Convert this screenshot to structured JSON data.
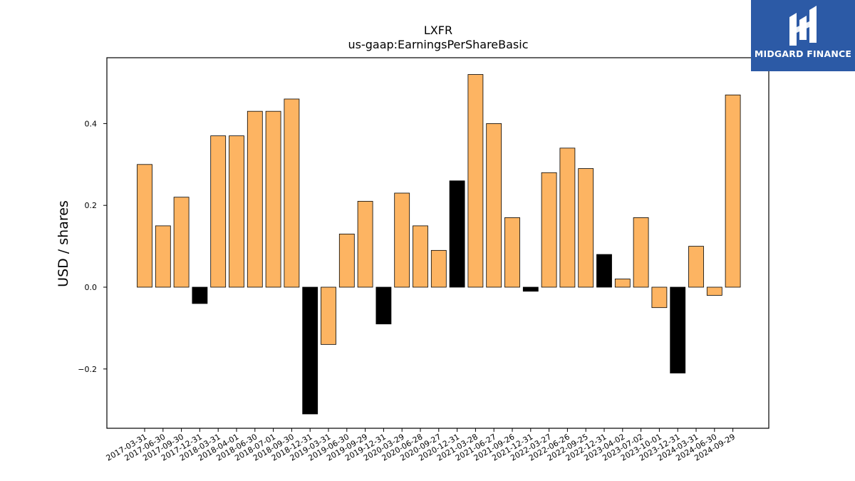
{
  "brand": {
    "name": "MIDGARD FINANCE",
    "background": "#2c5aa6"
  },
  "chart_data": {
    "type": "bar",
    "title": "LXFR",
    "subtitle": "us-gaap:EarningsPerShareBasic",
    "xlabel": "",
    "ylabel": "USD / shares",
    "ylim": [
      -0.35,
      0.56
    ],
    "yticks": [
      -0.2,
      0.0,
      0.2,
      0.4
    ],
    "ytick_labels": [
      "−0.2",
      "0.0",
      "0.2",
      "0.4"
    ],
    "grid": false,
    "colors": {
      "default": "#fdb462",
      "highlight": "#000000",
      "edge": "#000000"
    },
    "categories": [
      "2017-03-31",
      "2017-06-30",
      "2017-09-30",
      "2017-12-31",
      "2018-03-31",
      "2018-04-01",
      "2018-06-30",
      "2018-07-01",
      "2018-09-30",
      "2018-12-31",
      "2019-03-31",
      "2019-06-30",
      "2019-09-29",
      "2019-12-31",
      "2020-03-29",
      "2020-06-28",
      "2020-09-27",
      "2020-12-31",
      "2021-03-28",
      "2021-06-27",
      "2021-09-26",
      "2021-12-31",
      "2022-03-27",
      "2022-06-26",
      "2022-09-25",
      "2022-12-31",
      "2023-04-02",
      "2023-07-02",
      "2023-10-01",
      "2023-12-31",
      "2024-03-31",
      "2024-06-30",
      "2024-09-29"
    ],
    "values": [
      0.3,
      0.15,
      0.22,
      -0.04,
      0.37,
      0.37,
      0.43,
      0.43,
      0.46,
      -0.31,
      -0.14,
      0.13,
      0.21,
      -0.09,
      0.23,
      0.15,
      0.09,
      0.26,
      0.52,
      0.4,
      0.17,
      -0.01,
      0.28,
      0.34,
      0.29,
      0.08,
      0.02,
      0.17,
      -0.05,
      -0.21,
      0.1,
      -0.02,
      0.47
    ],
    "highlighted": [
      false,
      false,
      false,
      true,
      false,
      false,
      false,
      false,
      false,
      true,
      false,
      false,
      false,
      true,
      false,
      false,
      false,
      true,
      false,
      false,
      false,
      true,
      false,
      false,
      false,
      true,
      false,
      false,
      false,
      true,
      false,
      false,
      false
    ]
  }
}
